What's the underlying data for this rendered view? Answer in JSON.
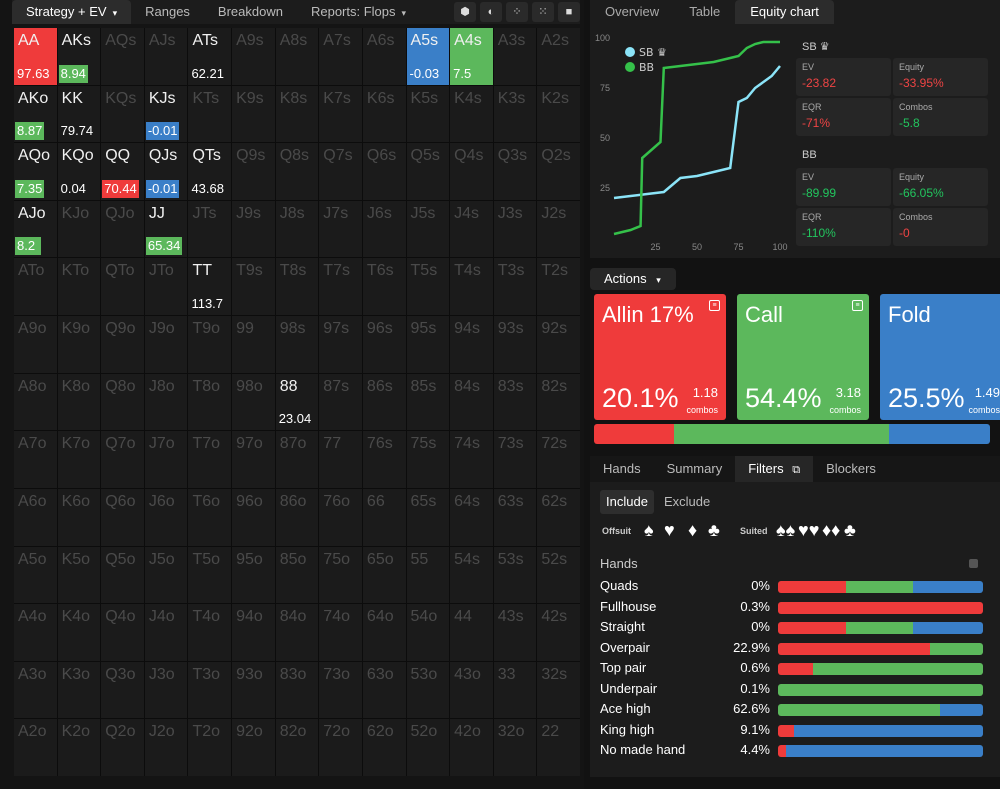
{
  "left_tabs": [
    {
      "label": "Strategy + EV",
      "caret": "▾"
    },
    {
      "label": "Ranges"
    },
    {
      "label": "Breakdown"
    },
    {
      "label": "Reports: Flops",
      "caret": "▾"
    }
  ],
  "right_tabs": [
    "Overview",
    "Table",
    "Equity chart"
  ],
  "colors": {
    "red": "#ef3b3b",
    "green": "#5cb85c",
    "blue": "#3a7fc8",
    "cyan": "#8be4f8",
    "line_green": "#35c14a"
  },
  "grid": [
    [
      "AA",
      "AKs",
      "AQs",
      "AJs",
      "ATs",
      "A9s",
      "A8s",
      "A7s",
      "A6s",
      "A5s",
      "A4s",
      "A3s",
      "A2s"
    ],
    [
      "AKo",
      "KK",
      "KQs",
      "KJs",
      "KTs",
      "K9s",
      "K8s",
      "K7s",
      "K6s",
      "K5s",
      "K4s",
      "K3s",
      "K2s"
    ],
    [
      "AQo",
      "KQo",
      "QQ",
      "QJs",
      "QTs",
      "Q9s",
      "Q8s",
      "Q7s",
      "Q6s",
      "Q5s",
      "Q4s",
      "Q3s",
      "Q2s"
    ],
    [
      "AJo",
      "KJo",
      "QJo",
      "JJ",
      "JTs",
      "J9s",
      "J8s",
      "J7s",
      "J6s",
      "J5s",
      "J4s",
      "J3s",
      "J2s"
    ],
    [
      "ATo",
      "KTo",
      "QTo",
      "JTo",
      "TT",
      "T9s",
      "T8s",
      "T7s",
      "T6s",
      "T5s",
      "T4s",
      "T3s",
      "T2s"
    ],
    [
      "A9o",
      "K9o",
      "Q9o",
      "J9o",
      "T9o",
      "99",
      "98s",
      "97s",
      "96s",
      "95s",
      "94s",
      "93s",
      "92s"
    ],
    [
      "A8o",
      "K8o",
      "Q8o",
      "J8o",
      "T8o",
      "98o",
      "88",
      "87s",
      "86s",
      "85s",
      "84s",
      "83s",
      "82s"
    ],
    [
      "A7o",
      "K7o",
      "Q7o",
      "J7o",
      "T7o",
      "97o",
      "87o",
      "77",
      "76s",
      "75s",
      "74s",
      "73s",
      "72s"
    ],
    [
      "A6o",
      "K6o",
      "Q6o",
      "J6o",
      "T6o",
      "96o",
      "86o",
      "76o",
      "66",
      "65s",
      "64s",
      "63s",
      "62s"
    ],
    [
      "A5o",
      "K5o",
      "Q5o",
      "J5o",
      "T5o",
      "95o",
      "85o",
      "75o",
      "65o",
      "55",
      "54s",
      "53s",
      "52s"
    ],
    [
      "A4o",
      "K4o",
      "Q4o",
      "J4o",
      "T4o",
      "94o",
      "84o",
      "74o",
      "64o",
      "54o",
      "44",
      "43s",
      "42s"
    ],
    [
      "A3o",
      "K3o",
      "Q3o",
      "J3o",
      "T3o",
      "93o",
      "83o",
      "73o",
      "63o",
      "53o",
      "43o",
      "33",
      "32s"
    ],
    [
      "A2o",
      "K2o",
      "Q2o",
      "J2o",
      "T2o",
      "92o",
      "82o",
      "72o",
      "62o",
      "52o",
      "42o",
      "32o",
      "22"
    ]
  ],
  "active_hands": {
    "AA": {
      "ev": "97.63",
      "ev_color": "red",
      "fill": "red"
    },
    "AKs": {
      "ev": "8.94",
      "ev_color": "green"
    },
    "ATs": {
      "ev": "62.21"
    },
    "A5s": {
      "ev": "-0.03",
      "ev_color": "blue",
      "fill": "blue"
    },
    "A4s": {
      "ev": "7.5",
      "ev_color": "green",
      "fill": "green"
    },
    "AKo": {
      "ev": "8.87",
      "ev_color": "green"
    },
    "KK": {
      "ev": "79.74"
    },
    "KJs": {
      "ev": "-0.01",
      "ev_color": "blue"
    },
    "AQo": {
      "ev": "7.35",
      "ev_color": "green"
    },
    "KQo": {
      "ev": "0.04"
    },
    "QQ": {
      "ev": "70.44",
      "ev_color": "red"
    },
    "QJs": {
      "ev": "-0.01",
      "ev_color": "blue"
    },
    "QTs": {
      "ev": "43.68"
    },
    "AJo": {
      "ev": "8.2",
      "ev_color": "green"
    },
    "JJ": {
      "ev": "65.34",
      "ev_color": "green"
    },
    "TT": {
      "ev": "113.7"
    },
    "88": {
      "ev": "23.04"
    }
  },
  "chart_data": {
    "type": "line",
    "xlim": [
      0,
      100
    ],
    "ylim": [
      0,
      100
    ],
    "x_ticks": [
      25,
      50,
      75,
      100
    ],
    "y_ticks": [
      25,
      50,
      75,
      100
    ],
    "legend": [
      {
        "name": "SB ♛",
        "color": "#8be4f8"
      },
      {
        "name": "BB",
        "color": "#35c14a"
      }
    ],
    "series": [
      {
        "name": "SB",
        "x": [
          0,
          10,
          20,
          30,
          40,
          50,
          60,
          70,
          75,
          80,
          85,
          90,
          95,
          100
        ],
        "y": [
          20,
          21,
          22,
          23,
          30,
          31,
          33,
          35,
          68,
          70,
          75,
          78,
          81,
          86
        ]
      },
      {
        "name": "BB",
        "x": [
          0,
          10,
          16,
          17,
          28,
          30,
          40,
          50,
          60,
          70,
          75,
          80,
          85,
          90,
          100
        ],
        "y": [
          2,
          4,
          6,
          40,
          48,
          85,
          86,
          87,
          88,
          90,
          91,
          95,
          97,
          98,
          98
        ]
      }
    ]
  },
  "stats": {
    "sb": {
      "title": "SB ♛",
      "ev_label": "EV",
      "ev": "-23.82",
      "equity_label": "Equity",
      "equity": "-33.95%",
      "eqr_label": "EQR",
      "eqr": "-71%",
      "combos_label": "Combos",
      "combos": "-5.8"
    },
    "bb": {
      "title": "BB",
      "ev_label": "EV",
      "ev": "-89.99",
      "equity_label": "Equity",
      "equity": "-66.05%",
      "eqr_label": "EQR",
      "eqr": "-110%",
      "combos_label": "Combos",
      "combos": "-0"
    }
  },
  "actions": {
    "header": "Actions",
    "caret": "▾",
    "items": [
      {
        "title": "Allin 17%",
        "pct": "20.1%",
        "combos": "1.18",
        "combos_label": "combos",
        "color": "#ef3b3b",
        "share": 20.1
      },
      {
        "title": "Call",
        "pct": "54.4%",
        "combos": "3.18",
        "combos_label": "combos",
        "color": "#5cb85c",
        "share": 54.4
      },
      {
        "title": "Fold",
        "pct": "25.5%",
        "combos": "1.49",
        "combos_label": "combos",
        "color": "#3a7fc8",
        "share": 25.5
      }
    ]
  },
  "bottom_tabs": [
    "Hands",
    "Summary",
    "Filters",
    "Blockers"
  ],
  "filters": {
    "include": "Include",
    "exclude": "Exclude",
    "offsuit": "Offsuit",
    "suited": "Suited",
    "hands_title": "Hands",
    "rows": [
      {
        "label": "Quads",
        "pct": "0%",
        "r": 33,
        "g": 33,
        "b": 34
      },
      {
        "label": "Fullhouse",
        "pct": "0.3%",
        "r": 100,
        "g": 0,
        "b": 0
      },
      {
        "label": "Straight",
        "pct": "0%",
        "r": 33,
        "g": 33,
        "b": 34
      },
      {
        "label": "Overpair",
        "pct": "22.9%",
        "r": 74,
        "g": 26,
        "b": 0
      },
      {
        "label": "Top pair",
        "pct": "0.6%",
        "r": 17,
        "g": 83,
        "b": 0
      },
      {
        "label": "Underpair",
        "pct": "0.1%",
        "r": 0,
        "g": 100,
        "b": 0
      },
      {
        "label": "Ace high",
        "pct": "62.6%",
        "r": 0,
        "g": 79,
        "b": 21
      },
      {
        "label": "King high",
        "pct": "9.1%",
        "r": 8,
        "g": 0,
        "b": 92
      },
      {
        "label": "No made hand",
        "pct": "4.4%",
        "r": 4,
        "g": 0,
        "b": 96
      }
    ]
  }
}
